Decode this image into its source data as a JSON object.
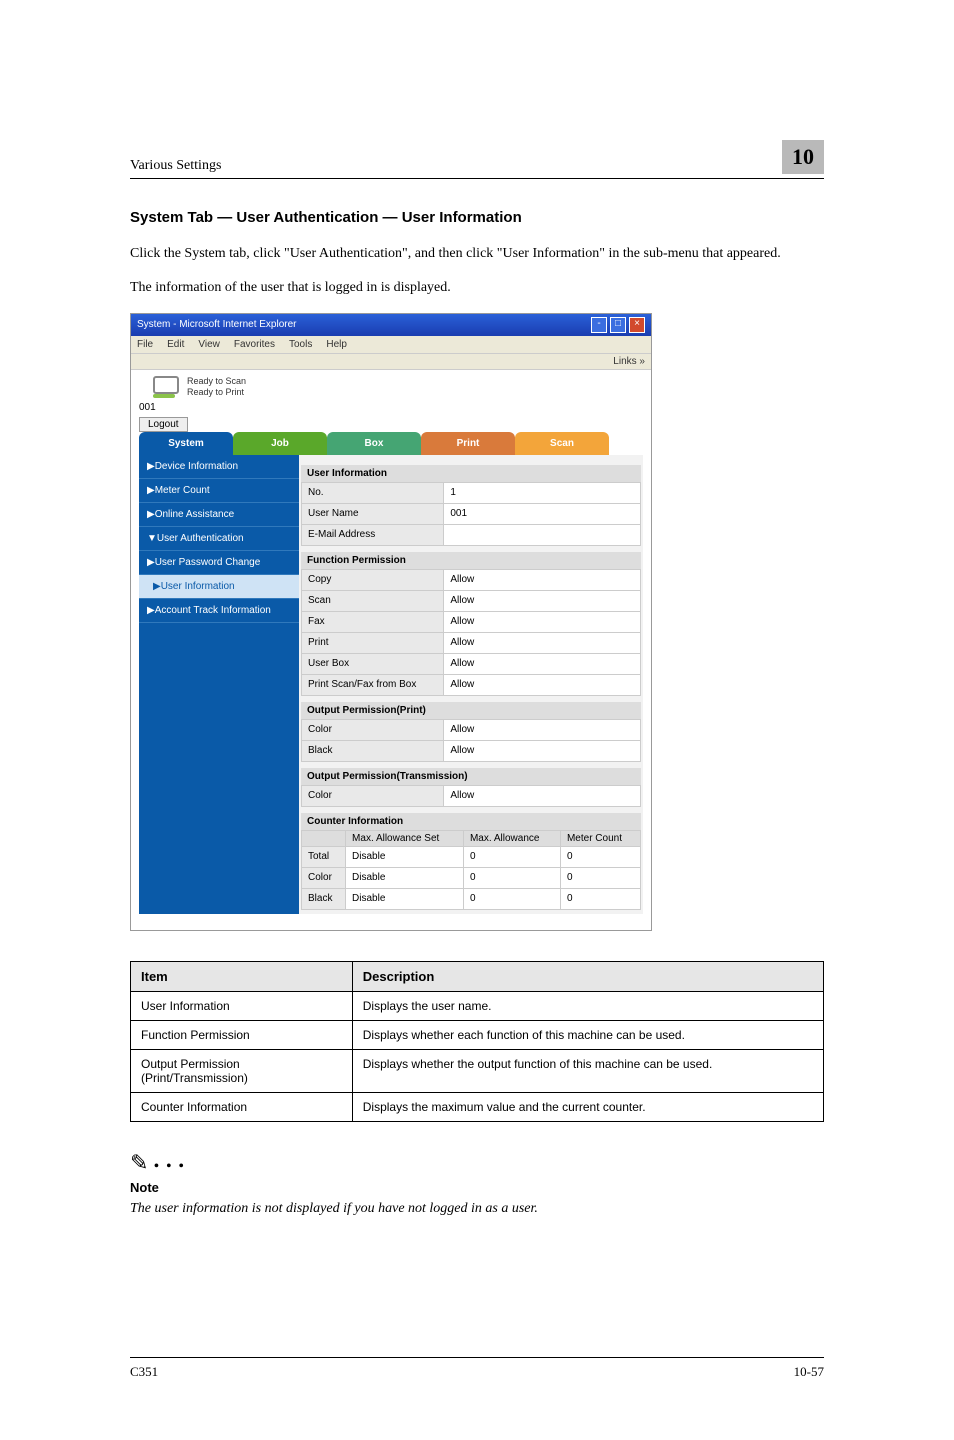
{
  "header": {
    "title": "Various Settings",
    "chapter": "10"
  },
  "section_title": "System Tab — User Authentication — User Information",
  "paragraphs": {
    "p1": "Click the System tab, click \"User Authentication\", and then click \"User Information\" in the sub-menu that appeared.",
    "p2": "The information of the user that is logged in is displayed."
  },
  "browser": {
    "title": "System - Microsoft Internet Explorer",
    "menus": [
      "File",
      "Edit",
      "View",
      "Favorites",
      "Tools",
      "Help"
    ],
    "links_label": "Links",
    "status": {
      "line1": "Ready to Scan",
      "line2": "Ready to Print"
    },
    "user_id": "001",
    "logout_label": "Logout",
    "tabs": {
      "system": "System",
      "job": "Job",
      "box": "Box",
      "print": "Print",
      "scan": "Scan"
    },
    "sidebar": [
      {
        "label": "▶Device Information"
      },
      {
        "label": "▶Meter Count"
      },
      {
        "label": "▶Online Assistance"
      },
      {
        "label": "▼User Authentication"
      },
      {
        "label": "▶User Password Change"
      },
      {
        "label": "▶User Information",
        "sub": true
      },
      {
        "label": "▶Account Track Information"
      }
    ],
    "user_info": {
      "title": "User Information",
      "rows": [
        [
          "No.",
          "1"
        ],
        [
          "User Name",
          "001"
        ],
        [
          "E-Mail Address",
          ""
        ]
      ]
    },
    "func_perm": {
      "title": "Function Permission",
      "rows": [
        [
          "Copy",
          "Allow"
        ],
        [
          "Scan",
          "Allow"
        ],
        [
          "Fax",
          "Allow"
        ],
        [
          "Print",
          "Allow"
        ],
        [
          "User Box",
          "Allow"
        ],
        [
          "Print Scan/Fax from Box",
          "Allow"
        ]
      ]
    },
    "out_print": {
      "title": "Output Permission(Print)",
      "rows": [
        [
          "Color",
          "Allow"
        ],
        [
          "Black",
          "Allow"
        ]
      ]
    },
    "out_trans": {
      "title": "Output Permission(Transmission)",
      "rows": [
        [
          "Color",
          "Allow"
        ]
      ]
    },
    "counter": {
      "title": "Counter Information",
      "headers": [
        "",
        "Max. Allowance Set",
        "Max. Allowance",
        "Meter Count"
      ],
      "rows": [
        [
          "Total",
          "Disable",
          "0",
          "0"
        ],
        [
          "Color",
          "Disable",
          "0",
          "0"
        ],
        [
          "Black",
          "Disable",
          "0",
          "0"
        ]
      ]
    }
  },
  "doc_table": {
    "headers": [
      "Item",
      "Description"
    ],
    "rows": [
      [
        "User Information",
        "Displays the user name."
      ],
      [
        "Function Permission",
        "Displays whether each function of this machine can be used."
      ],
      [
        "Output Permission (Print/Transmission)",
        "Displays whether the output function of this machine can be used."
      ],
      [
        "Counter Information",
        "Displays the maximum value and the current counter."
      ]
    ]
  },
  "note": {
    "label": "Note",
    "text": "The user information is not displayed if you have not logged in as a user."
  },
  "footer": {
    "left": "C351",
    "right": "10-57"
  }
}
